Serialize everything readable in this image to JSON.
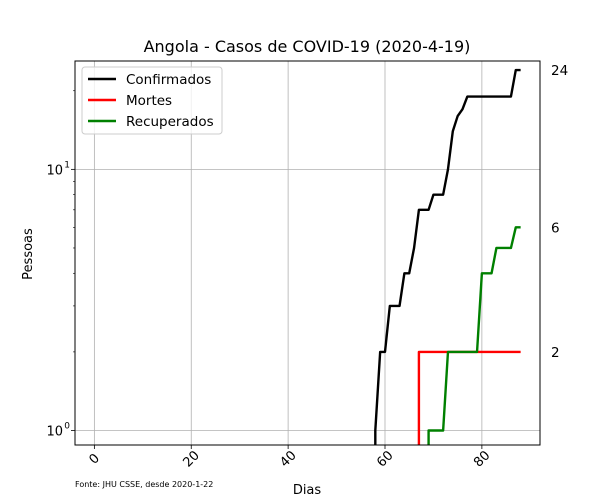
{
  "chart_data": {
    "type": "line",
    "title": "Angola - Casos de COVID-19 (2020-4-19)",
    "xlabel": "Dias",
    "ylabel": "Pessoas",
    "xlim": [
      -4,
      92
    ],
    "ylim": [
      0.88,
      26
    ],
    "yscale": "log",
    "grid": true,
    "legend_position": "top-left",
    "x_ticks": [
      0,
      20,
      40,
      60,
      80
    ],
    "y_ticks": [
      {
        "value": 1,
        "label": "10",
        "exp": "0"
      },
      {
        "value": 10,
        "label": "10",
        "exp": "1"
      }
    ],
    "right_labels": [
      {
        "value": 24,
        "label": "24"
      },
      {
        "value": 6,
        "label": "6"
      },
      {
        "value": 2,
        "label": "2"
      }
    ],
    "series": [
      {
        "name": "Confirmados",
        "color": "#000000",
        "points": [
          [
            58,
            0.5
          ],
          [
            58,
            1
          ],
          [
            59,
            2
          ],
          [
            60,
            2
          ],
          [
            61,
            3
          ],
          [
            62,
            3
          ],
          [
            63,
            3
          ],
          [
            64,
            4
          ],
          [
            65,
            4
          ],
          [
            66,
            5
          ],
          [
            67,
            7
          ],
          [
            68,
            7
          ],
          [
            69,
            7
          ],
          [
            70,
            8
          ],
          [
            71,
            8
          ],
          [
            72,
            8
          ],
          [
            73,
            10
          ],
          [
            74,
            14
          ],
          [
            75,
            16
          ],
          [
            76,
            17
          ],
          [
            77,
            19
          ],
          [
            78,
            19
          ],
          [
            79,
            19
          ],
          [
            80,
            19
          ],
          [
            81,
            19
          ],
          [
            82,
            19
          ],
          [
            83,
            19
          ],
          [
            84,
            19
          ],
          [
            85,
            19
          ],
          [
            86,
            19
          ],
          [
            87,
            24
          ],
          [
            88,
            24
          ]
        ]
      },
      {
        "name": "Mortes",
        "color": "#ff0000",
        "points": [
          [
            67,
            0.5
          ],
          [
            67,
            2
          ],
          [
            68,
            2
          ],
          [
            69,
            2
          ],
          [
            70,
            2
          ],
          [
            71,
            2
          ],
          [
            72,
            2
          ],
          [
            73,
            2
          ],
          [
            74,
            2
          ],
          [
            75,
            2
          ],
          [
            76,
            2
          ],
          [
            77,
            2
          ],
          [
            78,
            2
          ],
          [
            79,
            2
          ],
          [
            80,
            2
          ],
          [
            81,
            2
          ],
          [
            82,
            2
          ],
          [
            83,
            2
          ],
          [
            84,
            2
          ],
          [
            85,
            2
          ],
          [
            86,
            2
          ],
          [
            87,
            2
          ],
          [
            88,
            2
          ]
        ]
      },
      {
        "name": "Recuperados",
        "color": "#008000",
        "points": [
          [
            69,
            0.5
          ],
          [
            69,
            1
          ],
          [
            70,
            1
          ],
          [
            71,
            1
          ],
          [
            72,
            1
          ],
          [
            73,
            2
          ],
          [
            74,
            2
          ],
          [
            75,
            2
          ],
          [
            76,
            2
          ],
          [
            77,
            2
          ],
          [
            78,
            2
          ],
          [
            79,
            2
          ],
          [
            80,
            4
          ],
          [
            81,
            4
          ],
          [
            82,
            4
          ],
          [
            83,
            5
          ],
          [
            84,
            5
          ],
          [
            85,
            5
          ],
          [
            86,
            5
          ],
          [
            87,
            6
          ],
          [
            88,
            6
          ]
        ]
      }
    ],
    "source_note": "Fonte: JHU CSSE, desde 2020-1-22"
  }
}
